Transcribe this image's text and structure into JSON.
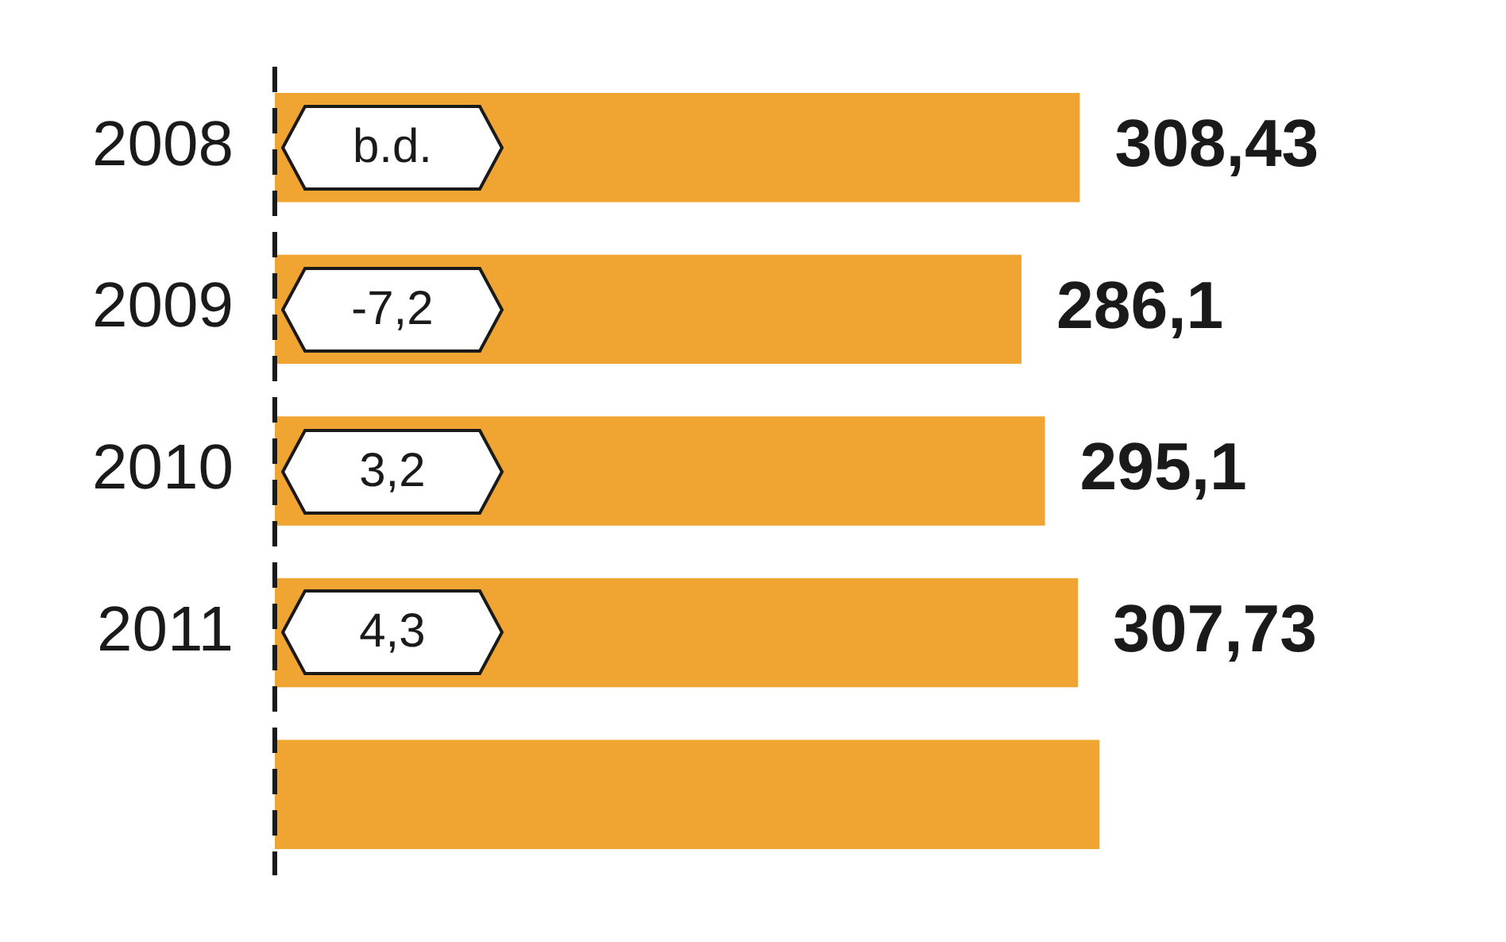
{
  "chart_data": {
    "type": "bar",
    "orientation": "horizontal",
    "categories": [
      "2008",
      "2009",
      "2010",
      "2011",
      null
    ],
    "values": [
      308.43,
      286.1,
      295.1,
      307.73,
      316
    ],
    "value_labels": [
      "308,43",
      "286,1",
      "295,1",
      "307,73",
      null
    ],
    "color": "#f0a431",
    "tick_labels": "y",
    "legend": false,
    "annotations": [
      "b.d.",
      "-7,2",
      "3,2",
      "4,3"
    ]
  }
}
